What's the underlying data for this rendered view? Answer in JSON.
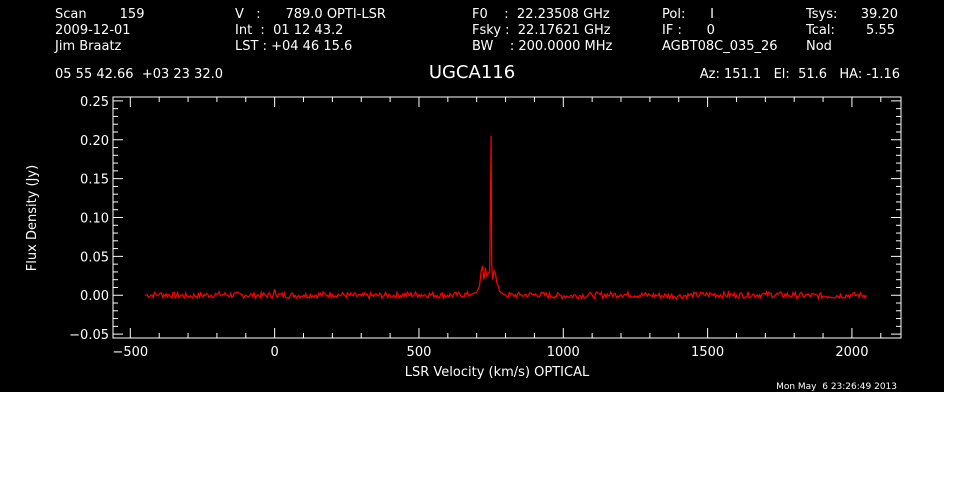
{
  "header": {
    "col1": [
      "Scan        159",
      "2009-12-01",
      "Jim Braatz"
    ],
    "col2": [
      "V   :      789.0 OPTI-LSR",
      "Int  :  01 12 43.2",
      "LST : +04 46 15.6"
    ],
    "col3": [
      "F0    :  22.23508 GHz",
      "Fsky :  22.17621 GHz",
      "BW    : 200.0000 MHz"
    ],
    "col4": [
      "Pol:      I",
      "IF :      0",
      "AGBT08C_035_26"
    ],
    "col5_labels": [
      "Tsys:",
      "Tcal:",
      "Nod"
    ],
    "col5_values": [
      "39.20",
      "5.55"
    ],
    "coords": "05 55 42.66  +03 23 32.0",
    "source": "UGCA116",
    "pointing": "Az: 151.1   El:  51.6   HA: -1.16",
    "timestamp": "Mon May  6 23:26:49 2013"
  },
  "colors": {
    "background": "#000000",
    "foreground": "#ffffff",
    "spectrum": "#ff0000"
  },
  "chart_data": {
    "type": "line",
    "xlabel": "LSR Velocity (km/s) OPTICAL",
    "ylabel": "Flux Density (Jy)",
    "xlim": [
      -560,
      2170
    ],
    "ylim": [
      -0.055,
      0.255
    ],
    "xticks": [
      -500,
      0,
      500,
      1000,
      1500,
      2000
    ],
    "xtick_labels": [
      "−500",
      "0",
      "500",
      "1000",
      "1500",
      "2000"
    ],
    "yticks": [
      -0.05,
      0.0,
      0.05,
      0.1,
      0.15,
      0.2,
      0.25
    ],
    "ytick_labels": [
      "−0.05",
      "0.00",
      "0.05",
      "0.10",
      "0.15",
      "0.20",
      "0.25"
    ],
    "series": [
      {
        "x": [
          -450,
          -400,
          -300,
          -200,
          -100,
          -5,
          0,
          5,
          100,
          200,
          300,
          400,
          500,
          600,
          680,
          700,
          710,
          715,
          720,
          725,
          730,
          735,
          740,
          745,
          750,
          752,
          755,
          760,
          765,
          770,
          775,
          780,
          790,
          800,
          850,
          900,
          1000,
          1100,
          1200,
          1300,
          1400,
          1500,
          1600,
          1700,
          1800,
          1900,
          2000,
          2050
        ],
        "y": [
          0.0,
          0.001,
          -0.001,
          0.001,
          0.0,
          0.0,
          0.008,
          0.0,
          0.0,
          0.001,
          -0.001,
          0.0,
          0.001,
          0.0,
          0.001,
          0.004,
          0.012,
          0.03,
          0.038,
          0.02,
          0.035,
          0.025,
          0.028,
          0.03,
          0.205,
          0.04,
          0.02,
          0.032,
          0.028,
          0.015,
          0.012,
          0.005,
          0.002,
          0.0,
          0.0,
          0.001,
          -0.001,
          0.0,
          0.001,
          0.0,
          -0.001,
          0.001,
          0.0,
          0.001,
          0.0,
          -0.001,
          0.0,
          0.0
        ]
      }
    ]
  }
}
